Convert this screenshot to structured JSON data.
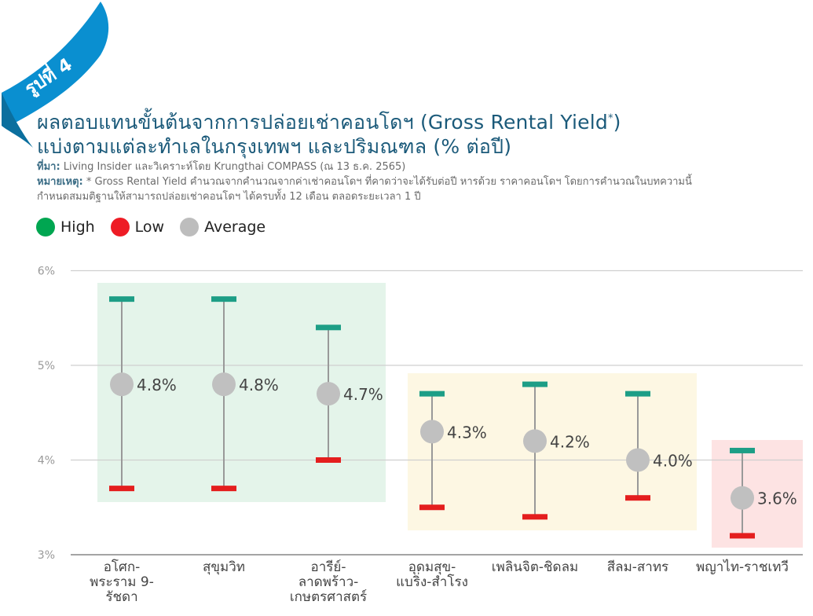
{
  "badge": {
    "text": "รูปที่ 4",
    "color": "#0a8fd0"
  },
  "header": {
    "title_line1": "ผลตอบแทนขั้นต้นจากการปล่อยเช่าคอนโดฯ (Gross Rental Yield",
    "title_sup": "*",
    "title_close": ")",
    "title_line2": "แบ่งตามแต่ละทำเลในกรุงเทพฯ และปริมณฑล (% ต่อปี)",
    "source_label": "ที่มา:",
    "source_text": " Living Insider และวิเคราะห์โดย Krungthai COMPASS (ณ 13 ธ.ค. 2565)",
    "note_label": "หมายเหตุ:",
    "note_text1": " * Gross Rental Yield คำนวณจากคำนวณจากค่าเช่าคอนโดฯ ที่คาดว่าจะได้รับต่อปี หารด้วย ราคาคอนโดฯ โดยการคำนวณในบทความนี้",
    "note_text2": "กำหนดสมมติฐานให้สามารถปล่อยเช่าคอนโดฯ ได้ครบทั้ง 12 เดือน ตลอดระยะเวลา 1 ปี"
  },
  "legend": [
    {
      "label": "High",
      "color": "#00a651"
    },
    {
      "label": "Low",
      "color": "#ee1c25"
    },
    {
      "label": "Average",
      "color": "#bdbdbd"
    }
  ],
  "chart_data": {
    "type": "range",
    "ylim": [
      3,
      6
    ],
    "yticks": [
      "3%",
      "4%",
      "5%",
      "6%"
    ],
    "grid": true,
    "categories": [
      {
        "label": [
          "อโศก-",
          "พระราม 9-",
          "รัชดา"
        ],
        "high": 5.7,
        "low": 3.7,
        "avg": 4.8,
        "avg_label": "4.8%"
      },
      {
        "label": [
          "สุขุมวิท"
        ],
        "high": 5.7,
        "low": 3.7,
        "avg": 4.8,
        "avg_label": "4.8%"
      },
      {
        "label": [
          "อารีย์-",
          "ลาดพร้าว-",
          "เกษตรศาสตร์"
        ],
        "high": 5.4,
        "low": 4.0,
        "avg": 4.7,
        "avg_label": "4.7%"
      },
      {
        "label": [
          "อุดมสุข-",
          "แบริ่ง-สำโรง"
        ],
        "high": 4.7,
        "low": 3.5,
        "avg": 4.3,
        "avg_label": "4.3%"
      },
      {
        "label": [
          "เพลินจิต-ชิดลม"
        ],
        "high": 4.8,
        "low": 3.4,
        "avg": 4.2,
        "avg_label": "4.2%"
      },
      {
        "label": [
          "สีลม-สาทร"
        ],
        "high": 4.7,
        "low": 3.6,
        "avg": 4.0,
        "avg_label": "4.0%"
      },
      {
        "label": [
          "พญาไท-ราชเทวี"
        ],
        "high": 4.1,
        "low": 3.2,
        "avg": 3.6,
        "avg_label": "3.6%"
      }
    ],
    "groups": [
      {
        "from": 0,
        "to": 2,
        "color": "#e4f4ea"
      },
      {
        "from": 3,
        "to": 5,
        "color": "#fdf7e3"
      },
      {
        "from": 6,
        "to": 6,
        "color": "#fde3e3"
      }
    ],
    "colors": {
      "high": "#1d9e86",
      "low": "#e41e1e",
      "avg": "#c0c0c0",
      "stem": "#999999",
      "grid": "#cfcfcf"
    }
  }
}
